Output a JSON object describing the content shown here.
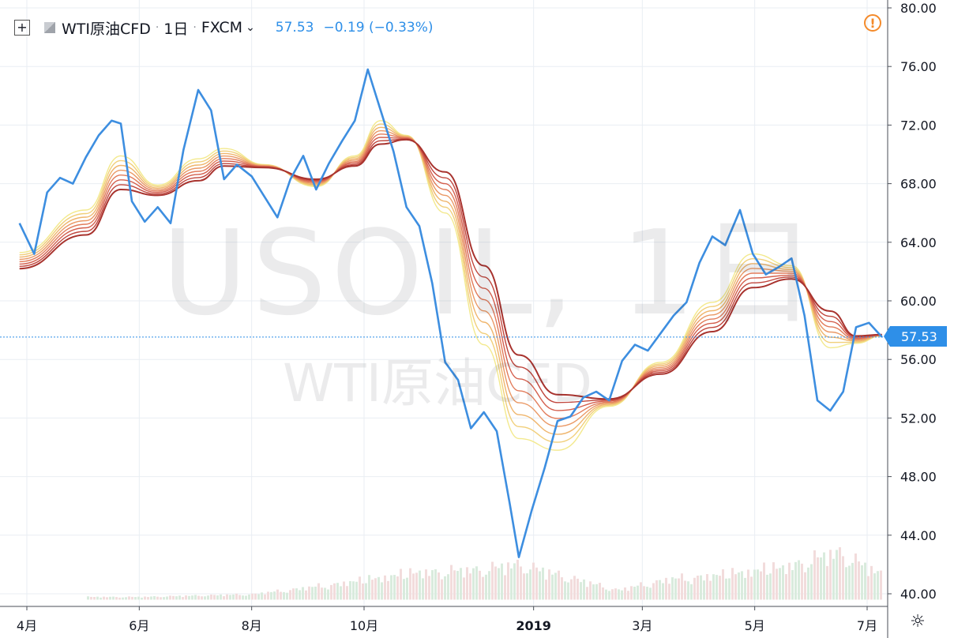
{
  "header": {
    "symbol": "WTI原油CFD",
    "interval": "1日",
    "exchange": "FXCM",
    "price": "57.53",
    "change": "−0.19 (−0.33%)",
    "icons": [
      "add-icon",
      "symbol-flag-icon",
      "chevron-down-icon"
    ]
  },
  "watermark": {
    "line1": "USOIL, 1日",
    "line2": "WTI原油CFD"
  },
  "last_price_label": "57.53",
  "status_icons": [
    "warning-icon",
    "settings-icon"
  ],
  "colors": {
    "price_line": "#3d8ee0",
    "ribbon": [
      "#f3e98d",
      "#f1cf7a",
      "#efb56c",
      "#ea9966",
      "#e27c5b",
      "#d45f4d",
      "#c0463d",
      "#a8332e"
    ],
    "volume": "#d9ebdd",
    "grid": "#e9eef3"
  },
  "chart_data": {
    "type": "line",
    "title": "",
    "ylim": [
      39.0,
      80.0
    ],
    "y_ticks": [
      "80.00",
      "76.00",
      "72.00",
      "68.00",
      "64.00",
      "60.00",
      "56.00",
      "52.00",
      "48.00",
      "44.00",
      "40.00"
    ],
    "x_ticks": [
      "4月",
      "6月",
      "8月",
      "10月",
      "2019",
      "3月",
      "5月",
      "7月"
    ],
    "last_value": 57.53,
    "series": [
      {
        "key": "price",
        "x": [
          "2018-03-28",
          "2018-04-05",
          "2018-04-12",
          "2018-04-19",
          "2018-04-26",
          "2018-05-03",
          "2018-05-10",
          "2018-05-17",
          "2018-05-22",
          "2018-05-28",
          "2018-06-04",
          "2018-06-11",
          "2018-06-18",
          "2018-06-25",
          "2018-07-03",
          "2018-07-10",
          "2018-07-17",
          "2018-07-24",
          "2018-08-01",
          "2018-08-08",
          "2018-08-15",
          "2018-08-22",
          "2018-08-29",
          "2018-09-05",
          "2018-09-12",
          "2018-09-19",
          "2018-09-26",
          "2018-10-03",
          "2018-10-10",
          "2018-10-17",
          "2018-10-24",
          "2018-10-31",
          "2018-11-07",
          "2018-11-14",
          "2018-11-21",
          "2018-11-28",
          "2018-12-05",
          "2018-12-12",
          "2018-12-19",
          "2018-12-24",
          "2018-12-31",
          "2019-01-07",
          "2019-01-14",
          "2019-01-21",
          "2019-01-28",
          "2019-02-04",
          "2019-02-11",
          "2019-02-18",
          "2019-02-25",
          "2019-03-04",
          "2019-03-11",
          "2019-03-18",
          "2019-03-25",
          "2019-04-01",
          "2019-04-08",
          "2019-04-15",
          "2019-04-23",
          "2019-04-30",
          "2019-05-07",
          "2019-05-14",
          "2019-05-21",
          "2019-05-28",
          "2019-06-04",
          "2019-06-11",
          "2019-06-18",
          "2019-06-25",
          "2019-07-02",
          "2019-07-09"
        ],
        "values": [
          65.3,
          63.2,
          67.4,
          68.4,
          68.0,
          69.8,
          71.3,
          72.3,
          72.1,
          66.8,
          65.4,
          66.4,
          65.3,
          70.3,
          74.4,
          73.0,
          68.3,
          69.3,
          68.5,
          67.1,
          65.7,
          68.3,
          69.9,
          67.6,
          69.4,
          70.9,
          72.3,
          75.8,
          73.0,
          70.2,
          66.4,
          65.1,
          61.2,
          55.8,
          54.6,
          51.3,
          52.4,
          51.1,
          46.2,
          42.5,
          45.7,
          48.6,
          51.8,
          52.1,
          53.4,
          53.8,
          53.2,
          55.9,
          57.0,
          56.6,
          57.8,
          59.0,
          59.9,
          62.6,
          64.4,
          63.8,
          66.2,
          63.2,
          61.8,
          62.3,
          62.9,
          59.0,
          53.2,
          52.5,
          53.8,
          58.2,
          58.5,
          57.53
        ]
      },
      {
        "key": "ema_fast",
        "x": [
          "2018-03-28",
          "2018-05-03",
          "2018-05-22",
          "2018-06-11",
          "2018-07-03",
          "2018-07-17",
          "2018-08-08",
          "2018-09-05",
          "2018-09-26",
          "2018-10-10",
          "2018-10-24",
          "2018-11-14",
          "2018-12-05",
          "2018-12-24",
          "2019-01-14",
          "2019-02-11",
          "2019-03-11",
          "2019-04-08",
          "2019-04-30",
          "2019-05-21",
          "2019-06-11",
          "2019-06-25",
          "2019-07-09"
        ],
        "values": [
          63.3,
          66.2,
          69.9,
          67.9,
          69.7,
          70.4,
          69.3,
          67.8,
          69.9,
          72.3,
          71.3,
          66.0,
          57.0,
          50.6,
          49.8,
          52.8,
          55.8,
          59.9,
          63.2,
          62.4,
          56.8,
          57.1,
          57.6
        ]
      },
      {
        "key": "ema_slow",
        "x": [
          "2018-03-28",
          "2018-05-03",
          "2018-05-22",
          "2018-06-11",
          "2018-07-03",
          "2018-07-17",
          "2018-08-08",
          "2018-09-05",
          "2018-09-26",
          "2018-10-10",
          "2018-10-24",
          "2018-11-14",
          "2018-12-05",
          "2018-12-24",
          "2019-01-14",
          "2019-02-11",
          "2019-03-11",
          "2019-04-08",
          "2019-04-30",
          "2019-05-21",
          "2019-06-11",
          "2019-06-25",
          "2019-07-09"
        ],
        "values": [
          62.2,
          64.5,
          67.6,
          67.2,
          68.2,
          69.2,
          69.1,
          68.3,
          69.2,
          70.7,
          71.0,
          68.8,
          62.4,
          56.3,
          53.6,
          53.3,
          55.0,
          57.9,
          60.9,
          61.5,
          59.3,
          57.6,
          57.7
        ]
      }
    ],
    "volume": {
      "x": [
        "2018-05-01",
        "2018-06-01",
        "2018-07-01",
        "2018-08-01",
        "2018-09-01",
        "2018-10-01",
        "2018-11-01",
        "2018-12-01",
        "2018-12-24",
        "2019-01-15",
        "2019-02-15",
        "2019-03-15",
        "2019-04-15",
        "2019-05-15",
        "2019-06-15",
        "2019-07-09"
      ],
      "values": [
        2,
        2,
        3,
        4,
        9,
        14,
        20,
        22,
        26,
        18,
        7,
        15,
        18,
        23,
        35,
        18
      ]
    },
    "grid": true
  }
}
